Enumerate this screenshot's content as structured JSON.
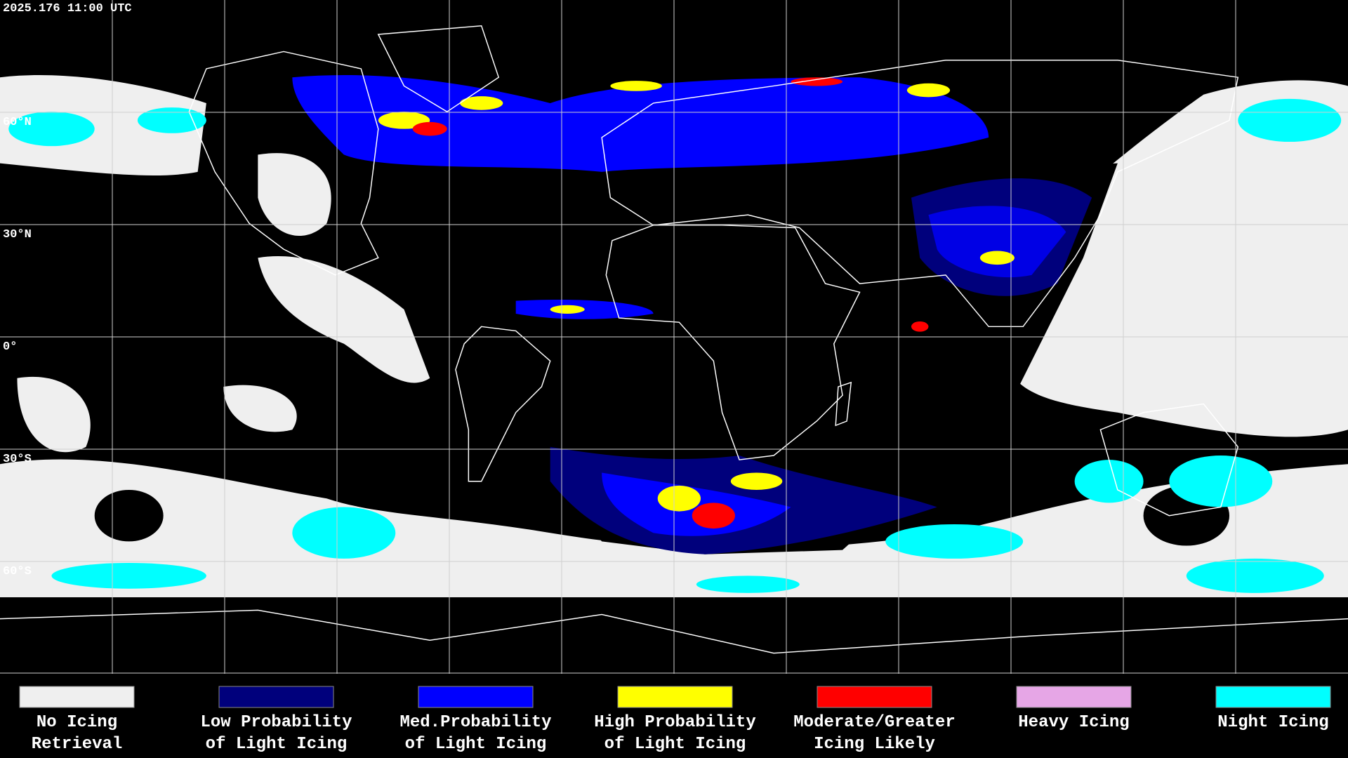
{
  "timestamp": "2025.176 11:00 UTC",
  "latitude_labels": [
    "60°N",
    "30°N",
    "0°",
    "30°S",
    "60°S"
  ],
  "legend": {
    "items": [
      {
        "label": [
          "No Icing",
          "Retrieval"
        ],
        "color": "#efefef"
      },
      {
        "label": [
          "Low Probability",
          "of Light Icing"
        ],
        "color": "#00007c"
      },
      {
        "label": [
          "Med.Probability",
          "of Light Icing"
        ],
        "color": "#0000ff"
      },
      {
        "label": [
          "High Probability",
          "of Light Icing"
        ],
        "color": "#ffff00"
      },
      {
        "label": [
          "Moderate/Greater",
          "Icing Likely"
        ],
        "color": "#ff0000"
      },
      {
        "label": [
          "Heavy Icing"
        ],
        "color": "#e6a6e6"
      },
      {
        "label": [
          "Night Icing"
        ],
        "color": "#00ffff"
      }
    ]
  }
}
